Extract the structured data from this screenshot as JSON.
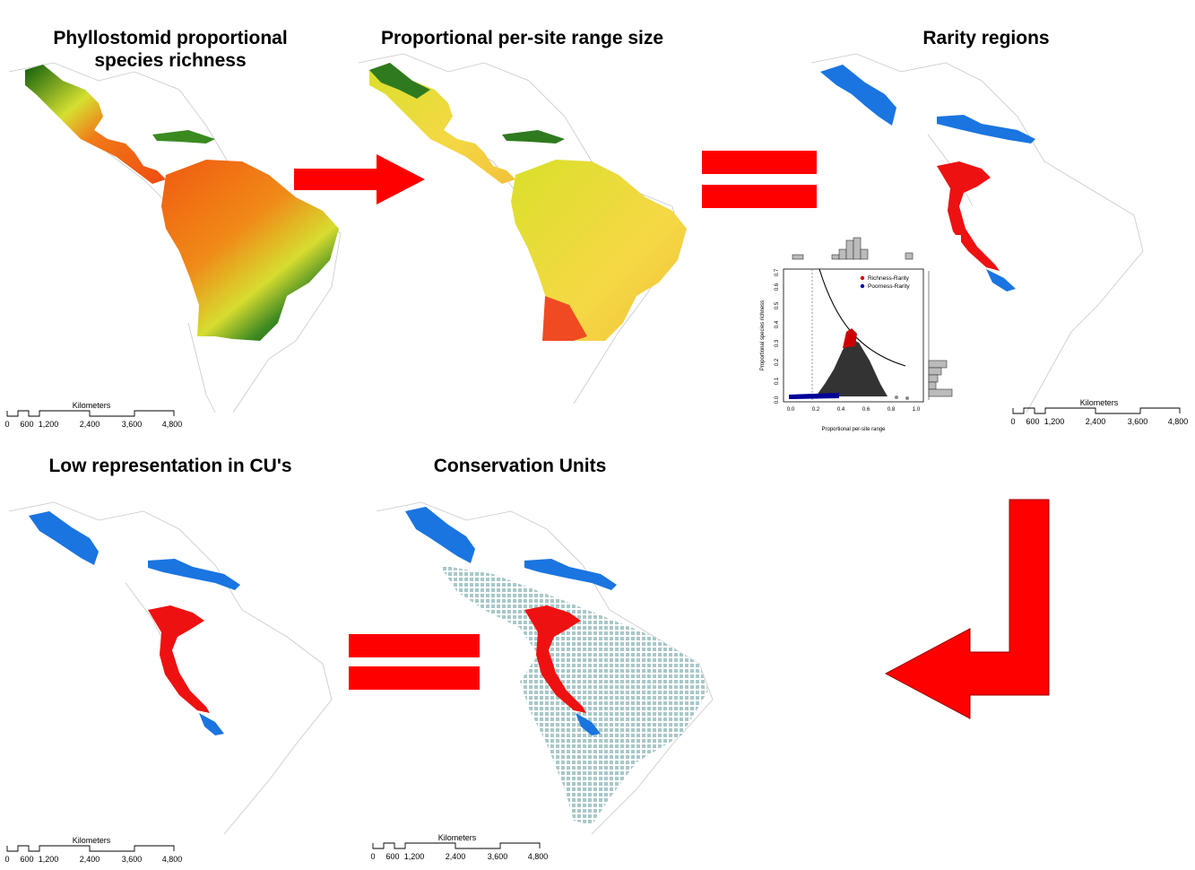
{
  "titles": {
    "p1": "Phyllostomid proportional\nspecies richness",
    "p2": "Proportional per-site range size",
    "p3": "Rarity regions",
    "p4": "Low representation in CU's",
    "p5": "Conservation Units"
  },
  "scale": {
    "label": "Kilometers",
    "ticks": [
      "0",
      "600",
      "1,200",
      "2,400",
      "3,600",
      "4,800"
    ]
  },
  "inset": {
    "xlabel": "Proportional per-site range",
    "ylabel": "Proportional species richness",
    "xticks": [
      "0.0",
      "0.2",
      "0.4",
      "0.6",
      "0.8",
      "1.0"
    ],
    "yticks": [
      "0.0",
      "0.1",
      "0.2",
      "0.3",
      "0.4",
      "0.5",
      "0.6",
      "0.7"
    ],
    "legend": [
      {
        "label": "Richness-Rarity",
        "color": "#cc0000"
      },
      {
        "label": "Poorness-Rarity",
        "color": "#000099"
      }
    ]
  },
  "colors": {
    "arrow": "#ff0000",
    "rarity_north": "#1a75e0",
    "rarity_andes": "#ee1111",
    "richness_low": "#0d5c0d",
    "richness_high": "#f04a10",
    "cu_cells": "#a8c8c8"
  }
}
